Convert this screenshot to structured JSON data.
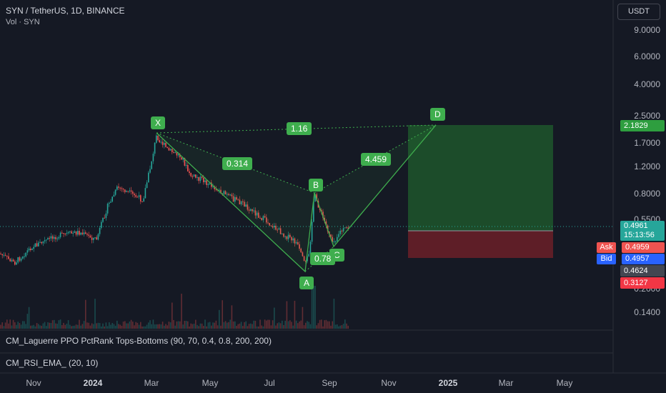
{
  "header": {
    "title": "SYN / TetherUS, 1D, BINANCE",
    "volume_label": "Vol · SYN"
  },
  "currency_button": "USDT",
  "price_axis": [
    "9.0000",
    "6.0000",
    "4.0000",
    "2.5000",
    "1.7000",
    "1.2000",
    "0.8000",
    "0.5500",
    "0.2000",
    "0.1400"
  ],
  "badges": {
    "target": "2.1829",
    "last_price": "0.4961",
    "countdown": "15:13:56",
    "ask_label": "Ask",
    "ask": "0.4959",
    "bid_label": "Bid",
    "bid": "0.4957",
    "level": "0.4624",
    "stop": "0.3127"
  },
  "pattern": {
    "points": [
      "X",
      "A",
      "B",
      "C",
      "D"
    ],
    "ratios": {
      "xb": "0.314",
      "xd": "1.16",
      "ac": "0.78",
      "bd": "4.459"
    }
  },
  "indicators": [
    "CM_Laguerre PPO PctRank Tops-Bottoms (90, 70, 0.4, 0.8, 200, 200)",
    "CM_RSI_EMA_ (20, 10)"
  ],
  "time_axis": [
    {
      "label": "Nov",
      "bold": false
    },
    {
      "label": "2024",
      "bold": true
    },
    {
      "label": "Mar",
      "bold": false
    },
    {
      "label": "May",
      "bold": false
    },
    {
      "label": "Jul",
      "bold": false
    },
    {
      "label": "Sep",
      "bold": false
    },
    {
      "label": "Nov",
      "bold": false
    },
    {
      "label": "2025",
      "bold": true
    },
    {
      "label": "Mar",
      "bold": false
    },
    {
      "label": "May",
      "bold": false
    }
  ],
  "colors": {
    "up": "#26a69a",
    "down": "#ef5350",
    "pattern": "#3fae4e",
    "bid": "#2962ff"
  }
}
